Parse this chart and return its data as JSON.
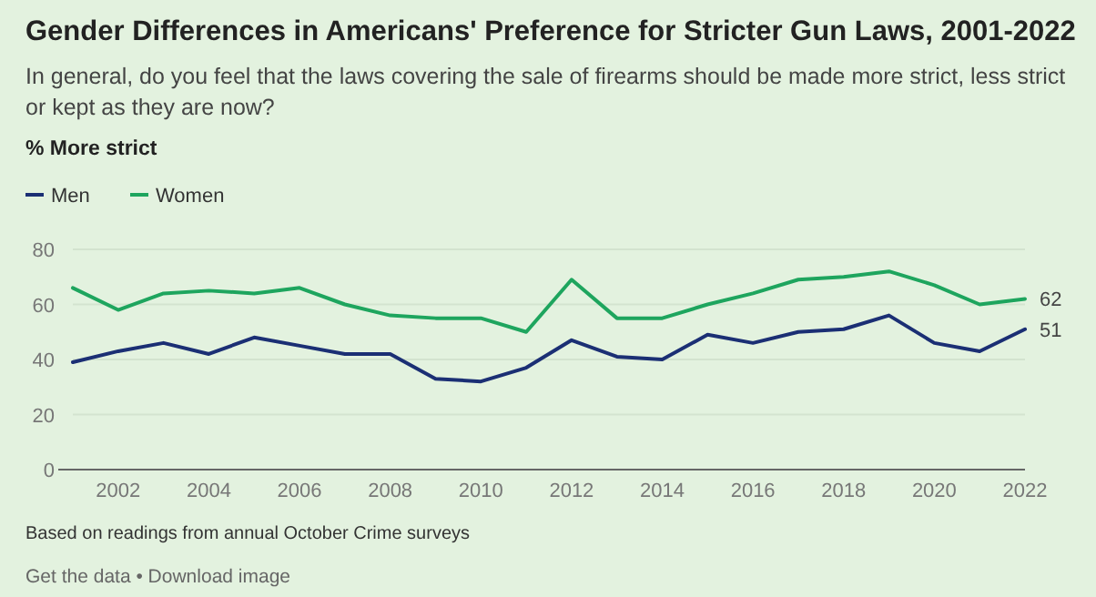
{
  "chart_data": {
    "type": "line",
    "title": "Gender Differences in Americans' Preference for Stricter Gun Laws, 2001-2022",
    "subtitle": "In general, do you feel that the laws covering the sale of firearms should be made more strict, less strict or kept as they are now?",
    "ylabel": "% More strict",
    "x": [
      2001,
      2002,
      2003,
      2004,
      2005,
      2006,
      2007,
      2008,
      2009,
      2010,
      2011,
      2012,
      2013,
      2014,
      2015,
      2016,
      2017,
      2018,
      2019,
      2020,
      2021,
      2022
    ],
    "series": [
      {
        "name": "Men",
        "color": "#1b2f74",
        "values": [
          39,
          43,
          46,
          42,
          48,
          45,
          42,
          42,
          33,
          32,
          37,
          47,
          41,
          40,
          49,
          46,
          50,
          51,
          56,
          46,
          43,
          51
        ],
        "value_labels": [
          null,
          null,
          null,
          null,
          null,
          null,
          null,
          null,
          null,
          null,
          null,
          null,
          null,
          null,
          null,
          null,
          null,
          null,
          null,
          null,
          null,
          "51"
        ]
      },
      {
        "name": "Women",
        "color": "#1ea55e",
        "values": [
          66,
          58,
          64,
          65,
          64,
          66,
          60,
          56,
          55,
          55,
          50,
          69,
          55,
          55,
          60,
          64,
          69,
          70,
          72,
          67,
          60,
          62
        ],
        "value_labels": [
          null,
          null,
          null,
          null,
          null,
          null,
          null,
          null,
          null,
          null,
          null,
          null,
          null,
          null,
          null,
          null,
          null,
          null,
          null,
          null,
          null,
          "62"
        ]
      }
    ],
    "xlim": [
      2001,
      2022
    ],
    "xticks": [
      2002,
      2004,
      2006,
      2008,
      2010,
      2012,
      2014,
      2016,
      2018,
      2020,
      2022
    ],
    "ylim": [
      0,
      80
    ],
    "yticks": [
      0,
      20,
      40,
      60,
      80
    ],
    "grid": "y",
    "legend": "top left",
    "marker": "none",
    "line_style": "solid",
    "annotations": [
      "Based on readings from annual October Crime surveys",
      "Get the data • Download image"
    ]
  }
}
